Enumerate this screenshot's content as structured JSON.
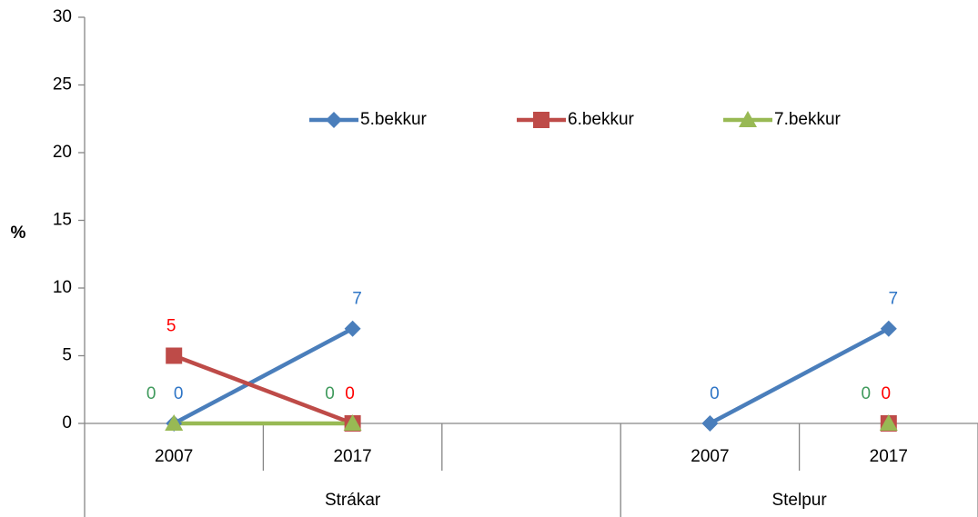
{
  "chart_data": {
    "type": "line",
    "y_label": "%",
    "categories": [
      "2007",
      "2017",
      null,
      "2007",
      "2017"
    ],
    "group_categories": [
      "Strákar",
      null,
      null,
      "Stelpur",
      null
    ],
    "ylim": [
      0,
      30
    ],
    "yticks": [
      0,
      5,
      10,
      15,
      20,
      25,
      30
    ],
    "legend": "top",
    "series": [
      {
        "name": "5.bekkur",
        "color": "#4a7ebb",
        "label_color": "#2e75c6",
        "marker": "diamond",
        "values": [
          0,
          7,
          null,
          0,
          7
        ]
      },
      {
        "name": "6.bekkur",
        "color": "#be4b48",
        "label_color": "#ff0000",
        "marker": "square",
        "values": [
          5,
          0,
          null,
          null,
          0
        ]
      },
      {
        "name": "7.bekkur",
        "color": "#98b954",
        "label_color": "#3f9a5c",
        "marker": "triangle",
        "values": [
          0,
          0,
          null,
          null,
          0
        ]
      }
    ]
  }
}
